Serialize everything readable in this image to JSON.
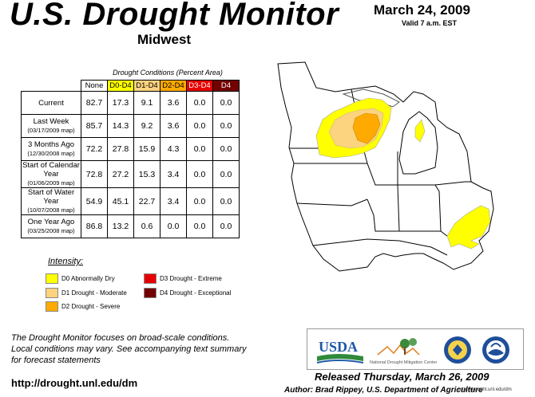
{
  "header": {
    "title": "U.S. Drought Monitor",
    "region": "Midwest",
    "date": "March 24, 2009",
    "valid": "Valid 7 a.m. EST"
  },
  "table": {
    "caption": "Drought Conditions (Percent Area)",
    "columns": [
      "None",
      "D0-D4",
      "D1-D4",
      "D2-D4",
      "D3-D4",
      "D4"
    ],
    "column_colors": [
      "#ffffff",
      "#ffff00",
      "#fcd37f",
      "#ffaa00",
      "#e60000",
      "#730000"
    ],
    "column_text_colors": [
      "#000000",
      "#000000",
      "#000000",
      "#000000",
      "#ffffff",
      "#ffffff"
    ],
    "rows": [
      {
        "label": "Current",
        "sub": "",
        "values": [
          "82.7",
          "17.3",
          "9.1",
          "3.6",
          "0.0",
          "0.0"
        ]
      },
      {
        "label": "Last Week",
        "sub": "(03/17/2009 map)",
        "values": [
          "85.7",
          "14.3",
          "9.2",
          "3.6",
          "0.0",
          "0.0"
        ]
      },
      {
        "label": "3 Months Ago",
        "sub": "(12/30/2008 map)",
        "values": [
          "72.2",
          "27.8",
          "15.9",
          "4.3",
          "0.0",
          "0.0"
        ]
      },
      {
        "label": "Start of Calendar Year",
        "sub": "(01/06/2009 map)",
        "values": [
          "72.8",
          "27.2",
          "15.3",
          "3.4",
          "0.0",
          "0.0"
        ]
      },
      {
        "label": "Start of Water Year",
        "sub": "(10/07/2008 map)",
        "values": [
          "54.9",
          "45.1",
          "22.7",
          "3.4",
          "0.0",
          "0.0"
        ]
      },
      {
        "label": "One Year Ago",
        "sub": "(03/25/2008 map)",
        "values": [
          "86.8",
          "13.2",
          "0.6",
          "0.0",
          "0.0",
          "0.0"
        ]
      }
    ]
  },
  "legend": {
    "title": "Intensity:",
    "items": [
      {
        "label": "D0 Abnormally Dry",
        "color": "#ffff00"
      },
      {
        "label": "D1 Drought - Moderate",
        "color": "#fcd37f"
      },
      {
        "label": "D2 Drought - Severe",
        "color": "#ffaa00"
      },
      {
        "label": "D3 Drought - Extreme",
        "color": "#e60000"
      },
      {
        "label": "D4 Drought - Exceptional",
        "color": "#730000"
      }
    ]
  },
  "footer": {
    "note_1": "The Drought Monitor focuses on broad-scale conditions.",
    "note_2": "Local conditions may vary. See accompanying text summary",
    "note_3": "for forecast statements",
    "url": "http://drought.unl.edu/dm",
    "released": "Released Thursday, March 26, 2009",
    "author": "Author: Brad Rippey, U.S. Department of Agriculture",
    "site_url": "http://drought.unl.edu/dm"
  },
  "logos": {
    "usda": "USDA",
    "ndmc": "National Drought Mitigation Center"
  }
}
